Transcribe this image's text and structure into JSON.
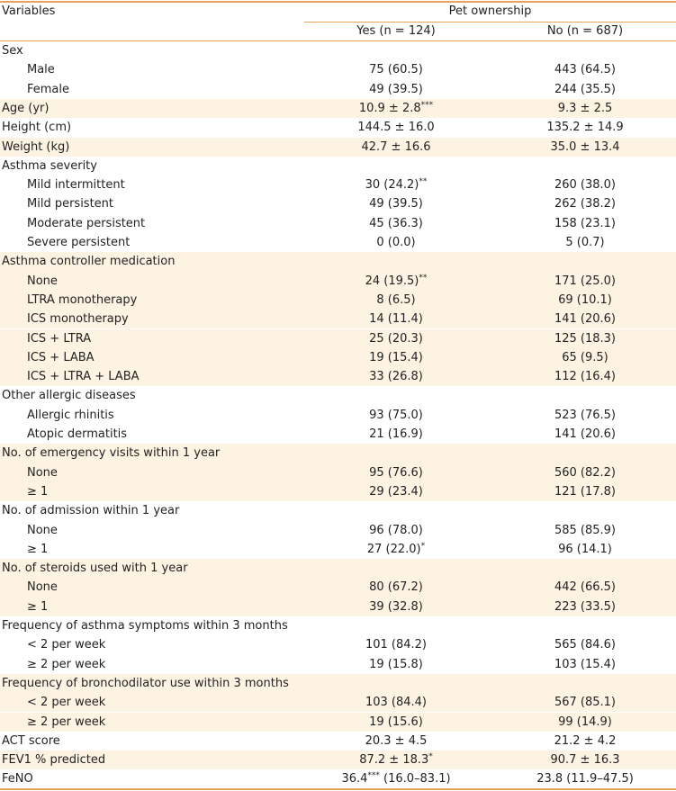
{
  "table": {
    "header": {
      "variables": "Variables",
      "group": "Pet ownership",
      "yes": "Yes (n = 124)",
      "no": "No (n = 687)"
    },
    "groups": [
      {
        "label": "Sex",
        "rows": [
          {
            "label": "Male",
            "yes": [
              "75 (60.5)"
            ],
            "no": [
              "443 (64.5)"
            ]
          },
          {
            "label": "Female",
            "yes": [
              "49 (39.5)"
            ],
            "no": [
              "244 (35.5)"
            ]
          }
        ]
      },
      {
        "label": "Age (yr)",
        "yes": [
          "10.9 ± 2.8",
          {
            "sup": "***"
          }
        ],
        "no": [
          "9.3 ± 2.5"
        ]
      },
      {
        "label": "Height (cm)",
        "yes": [
          "144.5 ± 16.0"
        ],
        "no": [
          "135.2 ± 14.9"
        ]
      },
      {
        "label": "Weight (kg)",
        "yes": [
          "42.7 ± 16.6"
        ],
        "no": [
          "35.0 ± 13.4"
        ]
      },
      {
        "label": "Asthma severity",
        "rows": [
          {
            "label": "Mild intermittent",
            "yes": [
              "30 (24.2)",
              {
                "sup": "**"
              }
            ],
            "no": [
              "260 (38.0)"
            ]
          },
          {
            "label": "Mild persistent",
            "yes": [
              "49 (39.5)"
            ],
            "no": [
              "262 (38.2)"
            ]
          },
          {
            "label": "Moderate persistent",
            "yes": [
              "45 (36.3)"
            ],
            "no": [
              "158 (23.1)"
            ]
          },
          {
            "label": "Severe persistent",
            "yes": [
              "0 (0.0)"
            ],
            "no": [
              "5 (0.7)"
            ]
          }
        ]
      },
      {
        "label": "Asthma controller medication",
        "rows": [
          {
            "label": "None",
            "yes": [
              "24 (19.5)",
              {
                "sup": "**"
              }
            ],
            "no": [
              "171 (25.0)"
            ]
          },
          {
            "label": "LTRA monotherapy",
            "yes": [
              "8 (6.5)"
            ],
            "no": [
              "69 (10.1)"
            ]
          },
          {
            "label": "ICS monotherapy",
            "yes": [
              "14 (11.4)"
            ],
            "no": [
              "141 (20.6)"
            ]
          },
          {
            "label": "ICS + LTRA",
            "yes": [
              "25 (20.3)"
            ],
            "no": [
              "125 (18.3)"
            ]
          },
          {
            "label": "ICS + LABA",
            "yes": [
              "19 (15.4)"
            ],
            "no": [
              "65 (9.5)"
            ]
          },
          {
            "label": "ICS + LTRA + LABA",
            "yes": [
              "33 (26.8)"
            ],
            "no": [
              "112 (16.4)"
            ]
          }
        ]
      },
      {
        "label": "Other allergic diseases",
        "rows": [
          {
            "label": "Allergic rhinitis",
            "yes": [
              "93 (75.0)"
            ],
            "no": [
              "523 (76.5)"
            ]
          },
          {
            "label": "Atopic dermatitis",
            "yes": [
              "21 (16.9)"
            ],
            "no": [
              "141 (20.6)"
            ]
          }
        ]
      },
      {
        "label": "No. of emergency visits within 1 year",
        "rows": [
          {
            "label": "None",
            "yes": [
              "95 (76.6)"
            ],
            "no": [
              "560 (82.2)"
            ]
          },
          {
            "label": "≥ 1",
            "yes": [
              "29 (23.4)"
            ],
            "no": [
              "121 (17.8)"
            ]
          }
        ]
      },
      {
        "label": "No. of admission within 1 year",
        "rows": [
          {
            "label": "None",
            "yes": [
              "96 (78.0)"
            ],
            "no": [
              "585 (85.9)"
            ]
          },
          {
            "label": "≥ 1",
            "yes": [
              "27 (22.0)",
              {
                "sup": "*"
              }
            ],
            "no": [
              "96 (14.1)"
            ]
          }
        ]
      },
      {
        "label": "No. of steroids used with 1 year",
        "rows": [
          {
            "label": "None",
            "yes": [
              "80 (67.2)"
            ],
            "no": [
              "442 (66.5)"
            ]
          },
          {
            "label": "≥ 1",
            "yes": [
              "39 (32.8)"
            ],
            "no": [
              "223 (33.5)"
            ]
          }
        ]
      },
      {
        "label": "Frequency of asthma symptoms within 3 months",
        "rows": [
          {
            "label": "< 2 per week",
            "yes": [
              "101 (84.2)"
            ],
            "no": [
              "565 (84.6)"
            ]
          },
          {
            "label": "≥ 2 per week",
            "yes": [
              "19 (15.8)"
            ],
            "no": [
              "103 (15.4)"
            ]
          }
        ]
      },
      {
        "label": "Frequency of bronchodilator use within 3 months",
        "rows": [
          {
            "label": "< 2 per week",
            "yes": [
              "103 (84.4)"
            ],
            "no": [
              "567 (85.1)"
            ]
          },
          {
            "label": "≥ 2 per week",
            "yes": [
              "19 (15.6)"
            ],
            "no": [
              "99 (14.9)"
            ]
          }
        ]
      },
      {
        "label": "ACT score",
        "yes": [
          "20.3 ± 4.5"
        ],
        "no": [
          "21.2 ± 4.2"
        ]
      },
      {
        "label": "FEV1 % predicted",
        "yes": [
          "87.2 ± 18.3",
          {
            "sup": "*"
          }
        ],
        "no": [
          "90.7 ± 16.3"
        ]
      },
      {
        "label": "FeNO",
        "yes": [
          "36.4",
          {
            "sup": "***"
          },
          " (16.0–83.1)"
        ],
        "no": [
          "23.8 (11.9–47.5)"
        ]
      }
    ]
  }
}
